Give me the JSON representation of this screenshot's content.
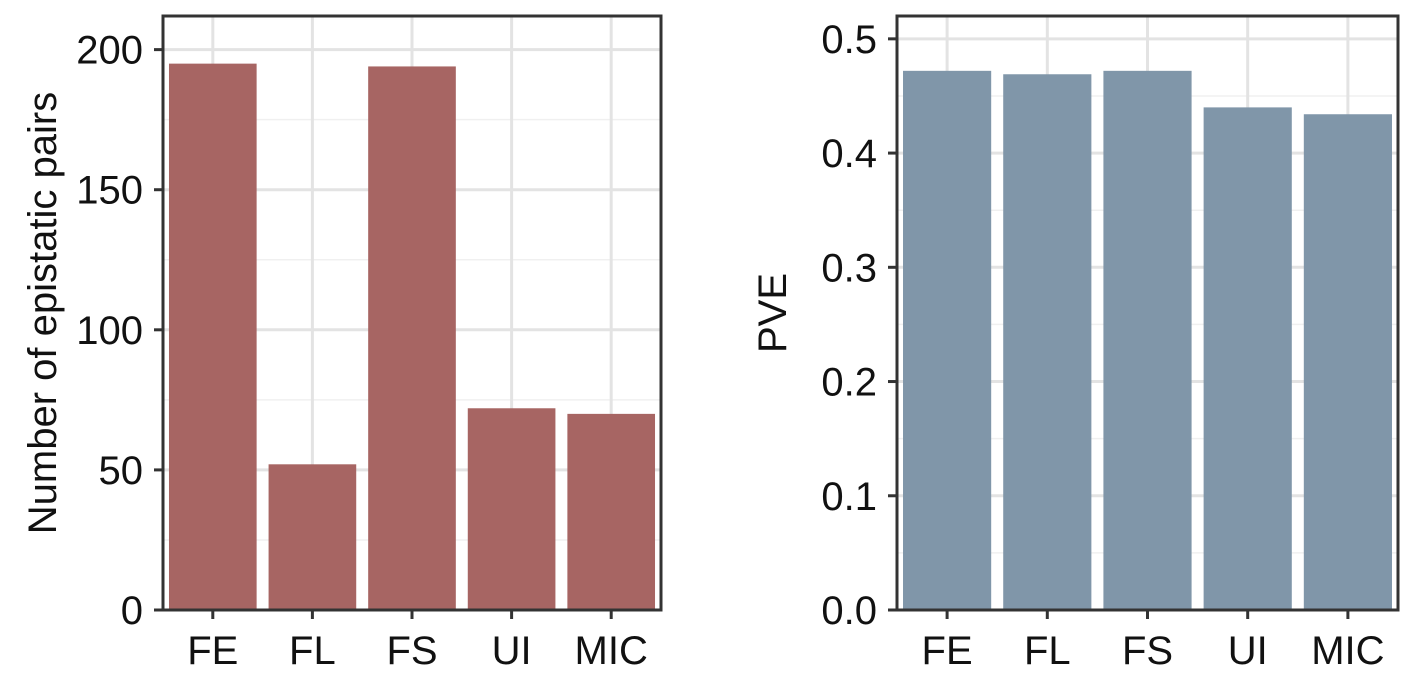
{
  "chart_data": [
    {
      "type": "bar",
      "categories": [
        "FE",
        "FL",
        "FS",
        "UI",
        "MIC"
      ],
      "values": [
        195,
        52,
        194,
        72,
        70
      ],
      "xlabel": "",
      "ylabel": "Number of epistatic pairs",
      "ylim": [
        0,
        212
      ],
      "yticks": [
        0,
        50,
        100,
        150,
        200
      ],
      "ytick_labels": [
        "0",
        "50",
        "100",
        "150",
        "200"
      ],
      "color": "#a76563",
      "grid": true
    },
    {
      "type": "bar",
      "categories": [
        "FE",
        "FL",
        "FS",
        "UI",
        "MIC"
      ],
      "values": [
        0.472,
        0.469,
        0.472,
        0.44,
        0.434
      ],
      "xlabel": "",
      "ylabel": "PVE",
      "ylim": [
        0,
        0.52
      ],
      "yticks": [
        0,
        0.1,
        0.2,
        0.3,
        0.4,
        0.5
      ],
      "ytick_labels": [
        "0.0",
        "0.1",
        "0.2",
        "0.3",
        "0.4",
        "0.5"
      ],
      "color": "#8096a9",
      "grid": true
    }
  ]
}
